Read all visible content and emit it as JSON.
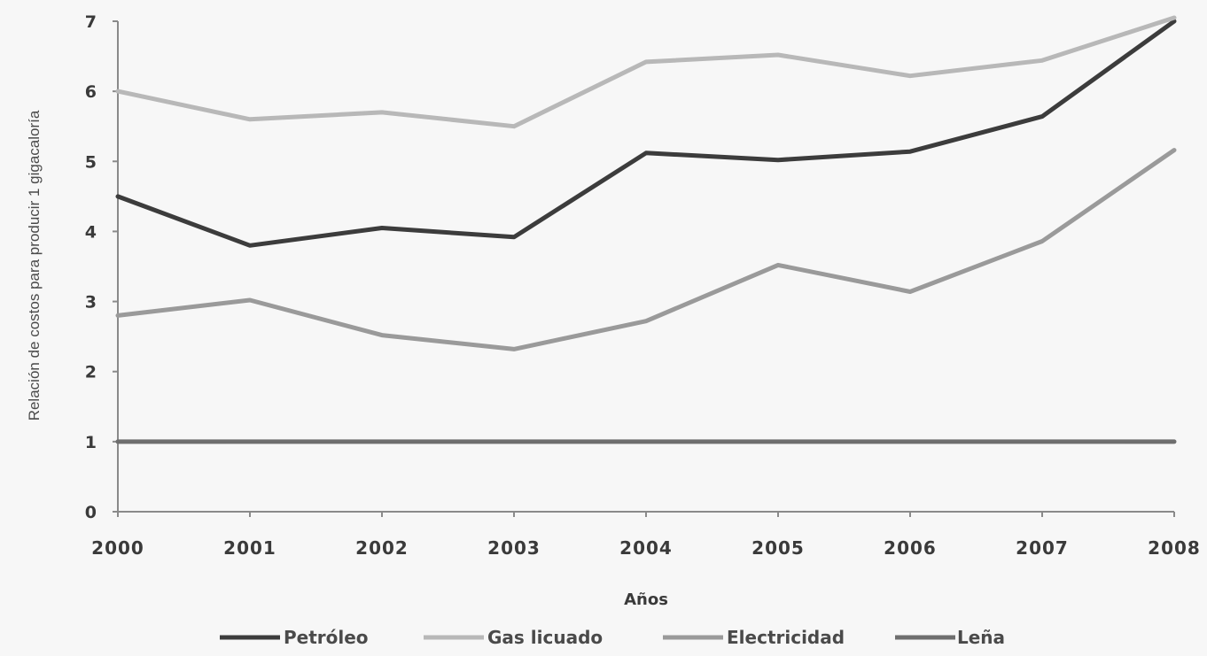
{
  "chart_data": {
    "type": "line",
    "title": "",
    "xlabel": "Años",
    "ylabel": "Relación de costos para producir 1 gigacaloría",
    "x": [
      "2000",
      "2001",
      "2002",
      "2003",
      "2004",
      "2005",
      "2006",
      "2007",
      "2008"
    ],
    "ylim": [
      0,
      7
    ],
    "yticks": [
      "0",
      "1",
      "2",
      "3",
      "4",
      "5",
      "6",
      "7"
    ],
    "grid": false,
    "legend_position": "bottom",
    "series": [
      {
        "name": "Petróleo",
        "color": "#3c3c3c",
        "values": [
          4.5,
          3.8,
          4.05,
          3.92,
          5.12,
          5.02,
          5.14,
          5.64,
          7.0
        ]
      },
      {
        "name": "Gas licuado",
        "color": "#b8b8b8",
        "values": [
          6.0,
          5.6,
          5.7,
          5.5,
          6.42,
          6.52,
          6.22,
          6.44,
          7.05
        ]
      },
      {
        "name": "Electricidad",
        "color": "#9a9a9a",
        "values": [
          2.8,
          3.02,
          2.52,
          2.32,
          2.72,
          3.52,
          3.14,
          3.86,
          5.16
        ]
      },
      {
        "name": "Leña",
        "color": "#6e6e6e",
        "values": [
          1.0,
          1.0,
          1.0,
          1.0,
          1.0,
          1.0,
          1.0,
          1.0,
          1.0
        ]
      }
    ]
  }
}
